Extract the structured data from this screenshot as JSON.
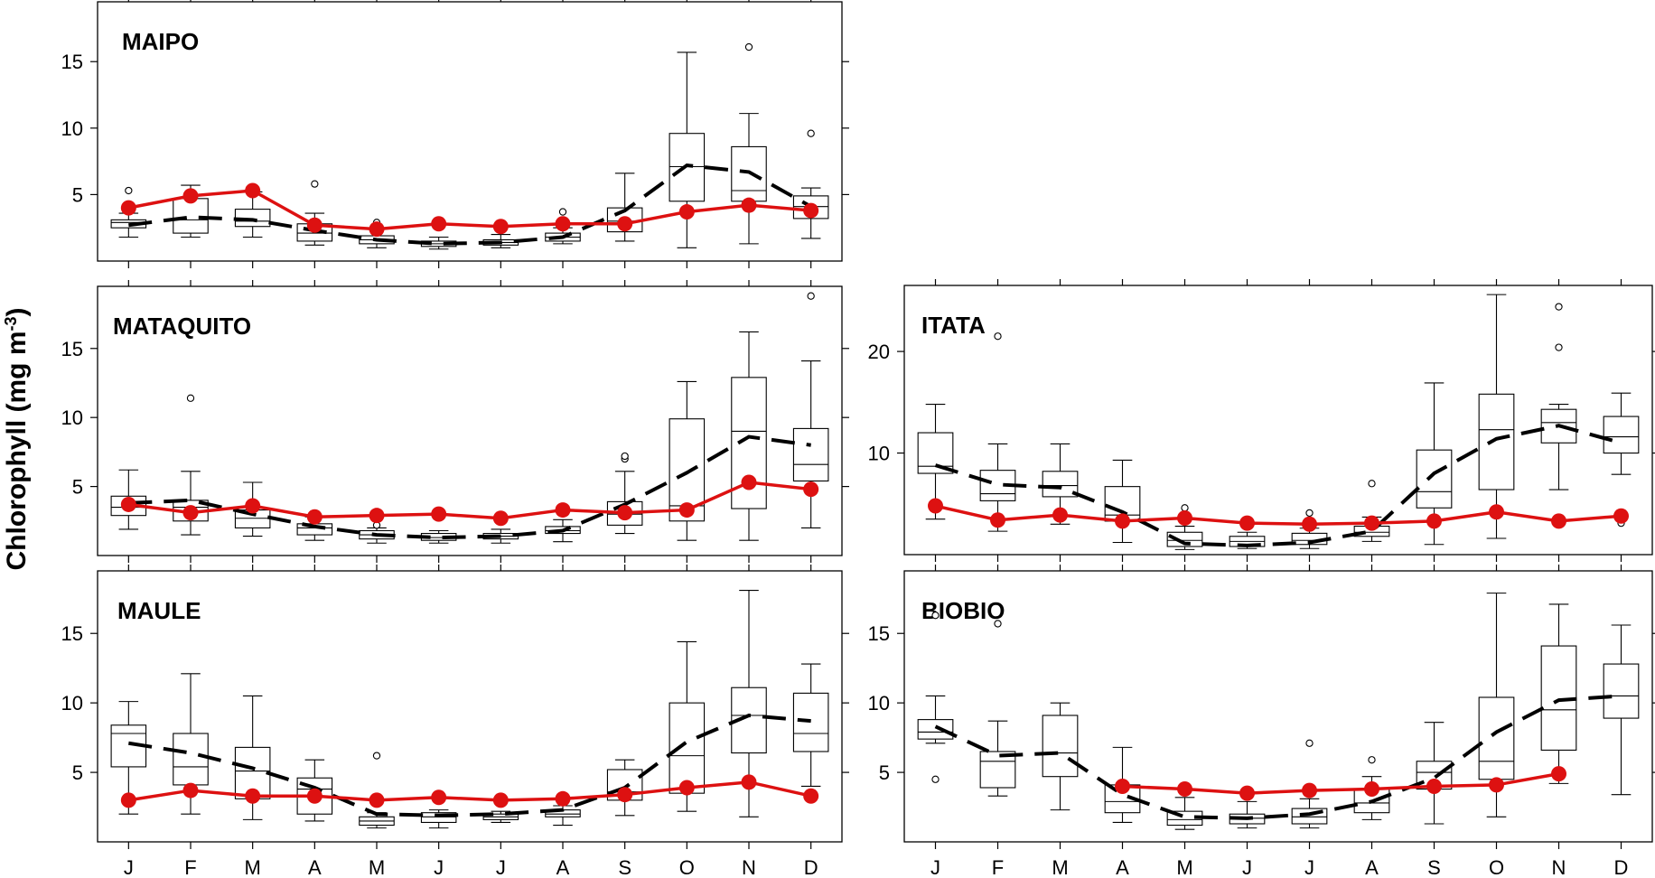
{
  "colors": {
    "mean_series": "#dd1111",
    "axes": "#000000",
    "trend": "#000000"
  },
  "ylabel_main": "Chlorophyll (mg m",
  "ylabel_sup": "-3",
  "ylabel_end": ")",
  "chart_data": [
    {
      "type": "box",
      "title": "MAIPO",
      "categories": [
        "J",
        "F",
        "M",
        "A",
        "M",
        "J",
        "J",
        "A",
        "S",
        "O",
        "N",
        "D"
      ],
      "ylim": [
        0,
        19.5
      ],
      "yticks": [
        5,
        10,
        15
      ],
      "show_x_labels": false,
      "boxes": [
        {
          "min": 1.8,
          "q1": 2.5,
          "median": 2.9,
          "q3": 3.1,
          "max": 3.6,
          "outliers": [
            5.3
          ]
        },
        {
          "min": 1.8,
          "q1": 2.1,
          "median": 3.1,
          "q3": 4.7,
          "max": 5.7,
          "outliers": []
        },
        {
          "min": 1.8,
          "q1": 2.6,
          "median": 3.0,
          "q3": 3.9,
          "max": 5.2,
          "outliers": []
        },
        {
          "min": 1.2,
          "q1": 1.5,
          "median": 2.1,
          "q3": 2.8,
          "max": 3.6,
          "outliers": [
            5.8
          ]
        },
        {
          "min": 1.0,
          "q1": 1.3,
          "median": 1.6,
          "q3": 1.9,
          "max": 2.4,
          "outliers": [
            2.9
          ]
        },
        {
          "min": 0.9,
          "q1": 1.1,
          "median": 1.3,
          "q3": 1.5,
          "max": 1.8,
          "outliers": []
        },
        {
          "min": 1.0,
          "q1": 1.2,
          "median": 1.4,
          "q3": 1.6,
          "max": 2.0,
          "outliers": []
        },
        {
          "min": 1.3,
          "q1": 1.5,
          "median": 1.8,
          "q3": 2.1,
          "max": 2.5,
          "outliers": [
            3.7
          ]
        },
        {
          "min": 1.5,
          "q1": 2.2,
          "median": 3.0,
          "q3": 4.0,
          "max": 6.6,
          "outliers": []
        },
        {
          "min": 1.0,
          "q1": 4.5,
          "median": 7.1,
          "q3": 9.6,
          "max": 15.7,
          "outliers": []
        },
        {
          "min": 1.3,
          "q1": 4.5,
          "median": 5.3,
          "q3": 8.6,
          "max": 11.1,
          "outliers": [
            16.1
          ]
        },
        {
          "min": 1.7,
          "q1": 3.2,
          "median": 4.1,
          "q3": 4.9,
          "max": 5.5,
          "outliers": [
            9.6
          ]
        }
      ],
      "trend": [
        2.7,
        3.3,
        3.1,
        2.3,
        1.6,
        1.3,
        1.4,
        1.8,
        3.8,
        7.2,
        6.7,
        4.1
      ],
      "means": [
        4.0,
        4.9,
        5.3,
        2.7,
        2.4,
        2.8,
        2.6,
        2.8,
        2.8,
        3.7,
        4.2,
        3.8
      ]
    },
    {
      "type": "box",
      "title": "MATAQUITO",
      "categories": [
        "J",
        "F",
        "M",
        "A",
        "M",
        "J",
        "J",
        "A",
        "S",
        "O",
        "N",
        "D"
      ],
      "ylim": [
        0,
        19.5
      ],
      "yticks": [
        5,
        10,
        15
      ],
      "show_x_labels": false,
      "boxes": [
        {
          "min": 1.9,
          "q1": 2.9,
          "median": 3.5,
          "q3": 4.3,
          "max": 6.2,
          "outliers": []
        },
        {
          "min": 1.5,
          "q1": 2.5,
          "median": 3.5,
          "q3": 4.0,
          "max": 6.1,
          "outliers": [
            11.4
          ]
        },
        {
          "min": 1.4,
          "q1": 2.0,
          "median": 2.7,
          "q3": 3.3,
          "max": 5.3,
          "outliers": []
        },
        {
          "min": 1.1,
          "q1": 1.5,
          "median": 2.0,
          "q3": 2.3,
          "max": 2.8,
          "outliers": []
        },
        {
          "min": 0.9,
          "q1": 1.2,
          "median": 1.5,
          "q3": 1.8,
          "max": 2.0,
          "outliers": [
            2.2
          ]
        },
        {
          "min": 0.9,
          "q1": 1.1,
          "median": 1.3,
          "q3": 1.6,
          "max": 1.8,
          "outliers": []
        },
        {
          "min": 0.9,
          "q1": 1.2,
          "median": 1.4,
          "q3": 1.6,
          "max": 1.9,
          "outliers": []
        },
        {
          "min": 1.0,
          "q1": 1.6,
          "median": 1.8,
          "q3": 2.1,
          "max": 2.6,
          "outliers": []
        },
        {
          "min": 1.6,
          "q1": 2.2,
          "median": 3.0,
          "q3": 3.9,
          "max": 6.1,
          "outliers": [
            7.0,
            7.2
          ]
        },
        {
          "min": 1.1,
          "q1": 2.5,
          "median": 3.6,
          "q3": 9.9,
          "max": 12.6,
          "outliers": []
        },
        {
          "min": 1.1,
          "q1": 3.4,
          "median": 9.0,
          "q3": 12.9,
          "max": 16.2,
          "outliers": []
        },
        {
          "min": 2.0,
          "q1": 5.4,
          "median": 6.6,
          "q3": 9.2,
          "max": 14.1,
          "outliers": [
            18.8
          ]
        }
      ],
      "trend": [
        3.8,
        4.0,
        3.0,
        2.1,
        1.5,
        1.3,
        1.4,
        1.8,
        3.7,
        6.0,
        8.6,
        8.0
      ],
      "means": [
        3.7,
        3.1,
        3.6,
        2.8,
        2.9,
        3.0,
        2.7,
        3.3,
        3.1,
        3.3,
        5.3,
        4.8
      ]
    },
    {
      "type": "box",
      "title": "ITATA",
      "categories": [
        "J",
        "F",
        "M",
        "A",
        "M",
        "J",
        "J",
        "A",
        "S",
        "O",
        "N",
        "D"
      ],
      "ylim": [
        0,
        26.5
      ],
      "yticks": [
        10,
        20
      ],
      "show_x_labels": false,
      "boxes": [
        {
          "min": 3.5,
          "q1": 8.0,
          "median": 8.7,
          "q3": 12.0,
          "max": 14.8,
          "outliers": []
        },
        {
          "min": 2.3,
          "q1": 5.3,
          "median": 6.0,
          "q3": 8.3,
          "max": 10.9,
          "outliers": [
            21.5
          ]
        },
        {
          "min": 3.0,
          "q1": 5.7,
          "median": 6.8,
          "q3": 8.2,
          "max": 10.9,
          "outliers": []
        },
        {
          "min": 1.2,
          "q1": 3.3,
          "median": 3.9,
          "q3": 6.7,
          "max": 9.3,
          "outliers": []
        },
        {
          "min": 0.5,
          "q1": 0.8,
          "median": 1.4,
          "q3": 2.2,
          "max": 2.8,
          "outliers": [
            4.6
          ]
        },
        {
          "min": 0.6,
          "q1": 0.8,
          "median": 1.3,
          "q3": 1.8,
          "max": 2.2,
          "outliers": []
        },
        {
          "min": 0.6,
          "q1": 1.0,
          "median": 1.4,
          "q3": 2.1,
          "max": 2.6,
          "outliers": [
            4.1
          ]
        },
        {
          "min": 1.3,
          "q1": 1.8,
          "median": 2.2,
          "q3": 2.8,
          "max": 3.7,
          "outliers": [
            7.0
          ]
        },
        {
          "min": 1.0,
          "q1": 4.6,
          "median": 6.2,
          "q3": 10.3,
          "max": 16.9,
          "outliers": []
        },
        {
          "min": 1.6,
          "q1": 6.4,
          "median": 12.3,
          "q3": 15.8,
          "max": 25.6,
          "outliers": []
        },
        {
          "min": 6.4,
          "q1": 11.0,
          "median": 13.0,
          "q3": 14.3,
          "max": 14.8,
          "outliers": [
            20.4,
            24.4
          ]
        },
        {
          "min": 7.9,
          "q1": 10.0,
          "median": 11.6,
          "q3": 13.6,
          "max": 15.9,
          "outliers": [
            3.1
          ]
        }
      ],
      "trend": [
        8.8,
        6.9,
        6.6,
        4.2,
        1.1,
        0.9,
        1.2,
        2.3,
        8.0,
        11.4,
        12.7,
        11.0
      ],
      "means": [
        4.8,
        3.4,
        3.9,
        3.3,
        3.6,
        3.1,
        3.0,
        3.1,
        3.3,
        4.2,
        3.3,
        3.8
      ]
    },
    {
      "type": "box",
      "title": "MAULE",
      "categories": [
        "J",
        "F",
        "M",
        "A",
        "M",
        "J",
        "J",
        "A",
        "S",
        "O",
        "N",
        "D"
      ],
      "ylim": [
        0,
        19.5
      ],
      "yticks": [
        5,
        10,
        15
      ],
      "show_x_labels": true,
      "boxes": [
        {
          "min": 2.0,
          "q1": 5.4,
          "median": 7.8,
          "q3": 8.4,
          "max": 10.1,
          "outliers": []
        },
        {
          "min": 2.0,
          "q1": 4.1,
          "median": 5.4,
          "q3": 7.8,
          "max": 12.1,
          "outliers": []
        },
        {
          "min": 1.6,
          "q1": 3.1,
          "median": 5.1,
          "q3": 6.8,
          "max": 10.5,
          "outliers": []
        },
        {
          "min": 1.5,
          "q1": 2.0,
          "median": 3.8,
          "q3": 4.6,
          "max": 5.9,
          "outliers": []
        },
        {
          "min": 1.0,
          "q1": 1.2,
          "median": 1.5,
          "q3": 1.8,
          "max": 2.1,
          "outliers": [
            6.2
          ]
        },
        {
          "min": 1.0,
          "q1": 1.4,
          "median": 1.8,
          "q3": 2.1,
          "max": 2.3,
          "outliers": []
        },
        {
          "min": 1.4,
          "q1": 1.6,
          "median": 1.8,
          "q3": 2.0,
          "max": 2.2,
          "outliers": []
        },
        {
          "min": 1.2,
          "q1": 1.8,
          "median": 2.0,
          "q3": 2.3,
          "max": 2.6,
          "outliers": []
        },
        {
          "min": 1.9,
          "q1": 3.0,
          "median": 3.6,
          "q3": 5.2,
          "max": 5.9,
          "outliers": []
        },
        {
          "min": 2.2,
          "q1": 3.5,
          "median": 6.2,
          "q3": 10.0,
          "max": 14.4,
          "outliers": []
        },
        {
          "min": 1.8,
          "q1": 6.4,
          "median": 9.1,
          "q3": 11.1,
          "max": 18.1,
          "outliers": []
        },
        {
          "min": 4.0,
          "q1": 6.5,
          "median": 7.8,
          "q3": 10.7,
          "max": 12.8,
          "outliers": []
        }
      ],
      "trend": [
        7.1,
        6.4,
        5.3,
        3.9,
        2.0,
        1.9,
        2.0,
        2.3,
        3.9,
        7.2,
        9.1,
        8.7
      ],
      "means": [
        3.0,
        3.7,
        3.3,
        3.3,
        3.0,
        3.2,
        3.0,
        3.1,
        3.4,
        3.9,
        4.3,
        3.3
      ]
    },
    {
      "type": "box",
      "title": "BIOBIO",
      "categories": [
        "J",
        "F",
        "M",
        "A",
        "M",
        "J",
        "J",
        "A",
        "S",
        "O",
        "N",
        "D"
      ],
      "ylim": [
        0,
        19.5
      ],
      "yticks": [
        5,
        10,
        15
      ],
      "show_x_labels": true,
      "boxes": [
        {
          "min": 7.1,
          "q1": 7.4,
          "median": 7.9,
          "q3": 8.8,
          "max": 10.5,
          "outliers": [
            4.5,
            16.3
          ]
        },
        {
          "min": 3.3,
          "q1": 3.9,
          "median": 5.8,
          "q3": 6.5,
          "max": 8.7,
          "outliers": [
            15.7
          ]
        },
        {
          "min": 2.3,
          "q1": 4.7,
          "median": 6.4,
          "q3": 9.1,
          "max": 10.0,
          "outliers": []
        },
        {
          "min": 1.4,
          "q1": 2.1,
          "median": 2.9,
          "q3": 4.1,
          "max": 6.8,
          "outliers": []
        },
        {
          "min": 0.9,
          "q1": 1.2,
          "median": 1.6,
          "q3": 2.2,
          "max": 3.2,
          "outliers": []
        },
        {
          "min": 1.0,
          "q1": 1.3,
          "median": 1.7,
          "q3": 2.0,
          "max": 2.9,
          "outliers": []
        },
        {
          "min": 1.0,
          "q1": 1.3,
          "median": 1.8,
          "q3": 2.4,
          "max": 3.1,
          "outliers": [
            7.1
          ]
        },
        {
          "min": 1.6,
          "q1": 2.1,
          "median": 2.8,
          "q3": 3.8,
          "max": 4.7,
          "outliers": [
            5.9
          ]
        },
        {
          "min": 1.3,
          "q1": 3.8,
          "median": 5.0,
          "q3": 5.8,
          "max": 8.6,
          "outliers": []
        },
        {
          "min": 1.8,
          "q1": 4.5,
          "median": 5.8,
          "q3": 10.4,
          "max": 17.9,
          "outliers": []
        },
        {
          "min": 4.2,
          "q1": 6.6,
          "median": 9.5,
          "q3": 14.1,
          "max": 17.1,
          "outliers": []
        },
        {
          "min": 3.4,
          "q1": 8.9,
          "median": 10.5,
          "q3": 12.8,
          "max": 15.6,
          "outliers": []
        }
      ],
      "trend": [
        8.3,
        6.2,
        6.4,
        3.4,
        1.8,
        1.7,
        2.0,
        2.9,
        4.6,
        7.9,
        10.2,
        10.5
      ],
      "means": [
        null,
        null,
        null,
        4.0,
        3.8,
        3.5,
        3.7,
        3.8,
        4.0,
        4.1,
        4.9,
        null
      ]
    }
  ]
}
